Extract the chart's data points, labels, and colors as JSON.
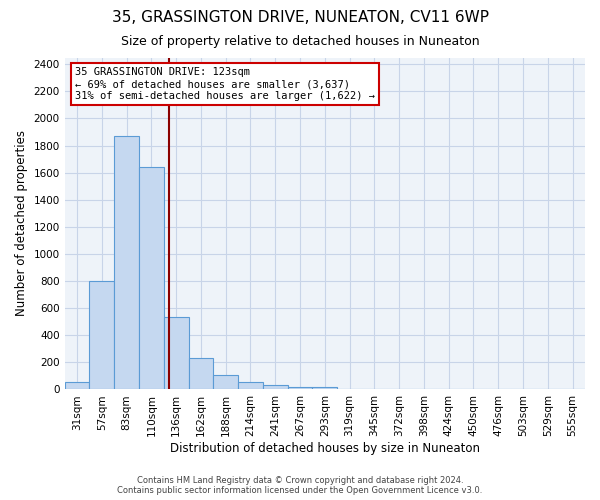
{
  "title": "35, GRASSINGTON DRIVE, NUNEATON, CV11 6WP",
  "subtitle": "Size of property relative to detached houses in Nuneaton",
  "xlabel": "Distribution of detached houses by size in Nuneaton",
  "ylabel": "Number of detached properties",
  "footer_line1": "Contains HM Land Registry data © Crown copyright and database right 2024.",
  "footer_line2": "Contains public sector information licensed under the Open Government Licence v3.0.",
  "categories": [
    "31sqm",
    "57sqm",
    "83sqm",
    "110sqm",
    "136sqm",
    "162sqm",
    "188sqm",
    "214sqm",
    "241sqm",
    "267sqm",
    "293sqm",
    "319sqm",
    "345sqm",
    "372sqm",
    "398sqm",
    "424sqm",
    "450sqm",
    "476sqm",
    "503sqm",
    "529sqm",
    "555sqm"
  ],
  "values": [
    55,
    800,
    1870,
    1640,
    535,
    235,
    110,
    55,
    30,
    15,
    20,
    0,
    0,
    0,
    0,
    0,
    0,
    0,
    0,
    0,
    0
  ],
  "bar_color": "#c5d8f0",
  "bar_edge_color": "#5b9bd5",
  "vline_x": 3.72,
  "vline_color": "#8b0000",
  "annotation_text": "35 GRASSINGTON DRIVE: 123sqm\n← 69% of detached houses are smaller (3,637)\n31% of semi-detached houses are larger (1,622) →",
  "annotation_box_edge": "#cc0000",
  "ylim": [
    0,
    2450
  ],
  "yticks": [
    0,
    200,
    400,
    600,
    800,
    1000,
    1200,
    1400,
    1600,
    1800,
    2000,
    2200,
    2400
  ],
  "grid_color": "#c8d4e8",
  "bg_color": "#eef3f9",
  "title_fontsize": 11,
  "subtitle_fontsize": 9,
  "annotation_fontsize": 7.5,
  "axis_label_fontsize": 8.5,
  "tick_fontsize": 7.5
}
